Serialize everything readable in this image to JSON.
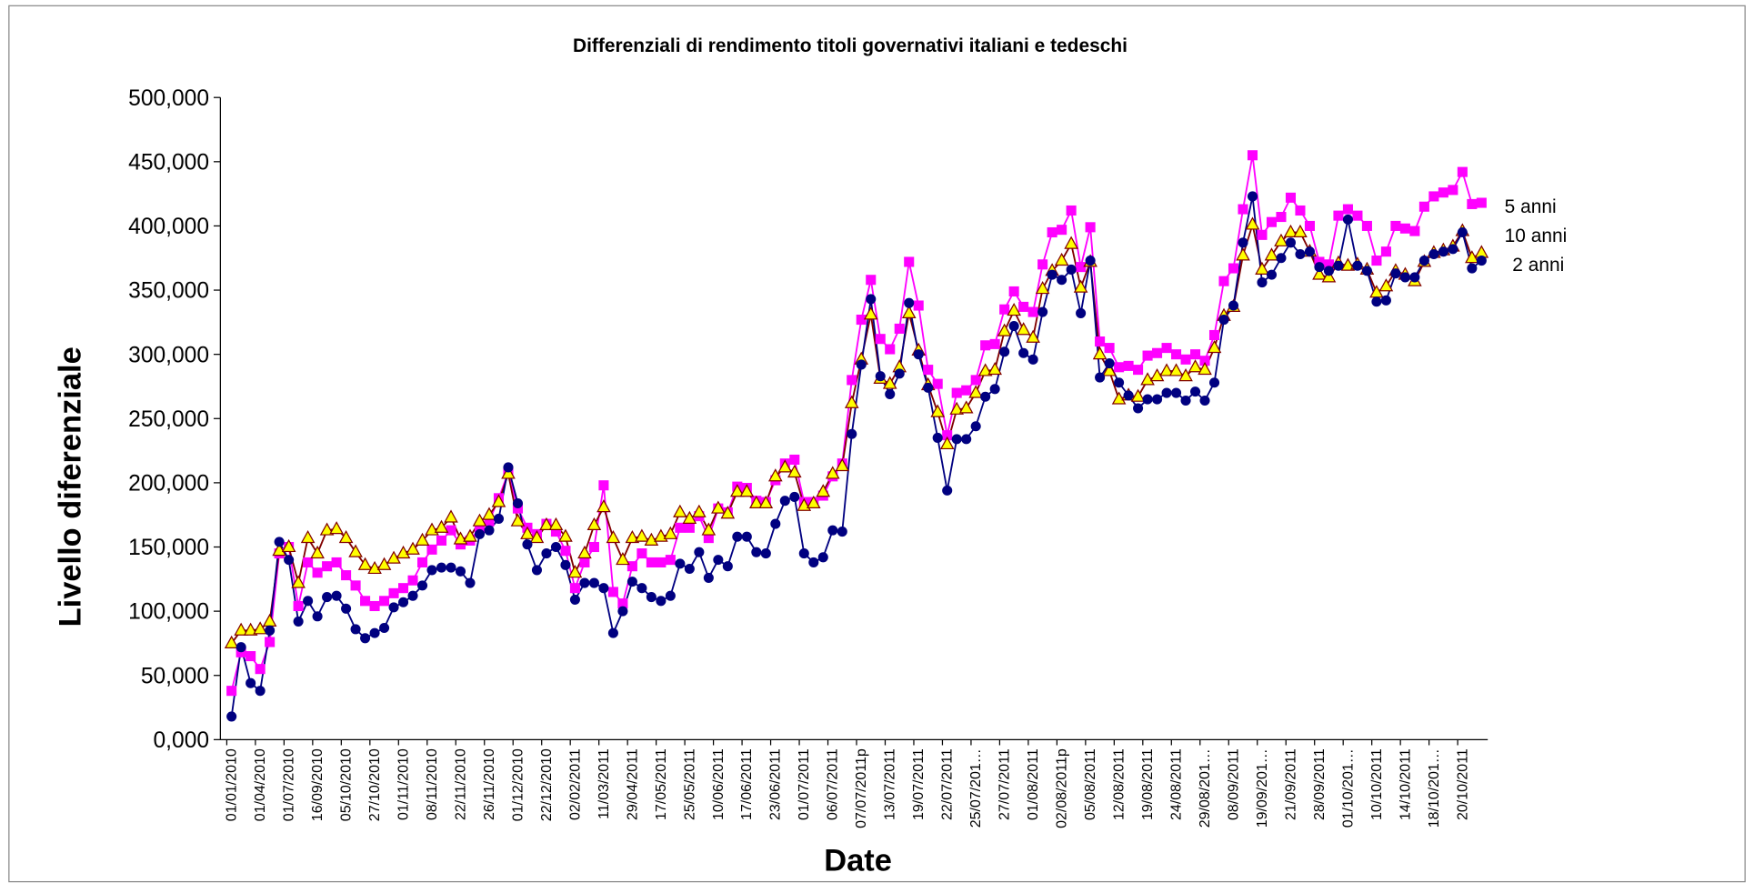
{
  "chart_data": {
    "type": "line",
    "title": "Differenziali di rendimento titoli governativi italiani e tedeschi",
    "y_label": "Livello diferenziale",
    "x_label": "Date",
    "categories": [
      "01/01/2010",
      null,
      null,
      "01/04/2010",
      null,
      null,
      "01/07/2010",
      null,
      null,
      "16/09/2010",
      null,
      null,
      "05/10/2010",
      null,
      null,
      "27/10/2010",
      null,
      null,
      "01/11/2010",
      null,
      null,
      "08/11/2010",
      null,
      null,
      "22/11/2010",
      null,
      null,
      "26/11/2010",
      null,
      null,
      "01/12/2010",
      null,
      null,
      "22/12/2010",
      null,
      null,
      "02/02/2011",
      null,
      null,
      "11/03/2011",
      null,
      null,
      "29/04/2011",
      null,
      null,
      "17/05/2011",
      null,
      null,
      "25/05/2011",
      null,
      null,
      "10/06/2011",
      null,
      null,
      "17/06/2011",
      null,
      null,
      "23/06/2011",
      null,
      null,
      "01/07/2011",
      null,
      null,
      "06/07/2011",
      null,
      null,
      "07/07/2011p",
      null,
      null,
      "13/07/2011",
      null,
      null,
      "19/07/2011",
      null,
      null,
      "22/07/2011",
      null,
      null,
      "25/07/201…",
      null,
      null,
      "27/07/2011",
      null,
      null,
      "01/08/2011",
      null,
      null,
      "02/08/2011p",
      null,
      null,
      "05/08/2011",
      null,
      null,
      "12/08/2011",
      null,
      null,
      "19/08/2011",
      null,
      null,
      "24/08/2011",
      null,
      null,
      "29/08/201…",
      null,
      null,
      "08/09/2011",
      null,
      null,
      "19/09/201…",
      null,
      null,
      "21/09/2011",
      null,
      null,
      "28/09/2011",
      null,
      null,
      "01/10/201…",
      null,
      null,
      "10/10/2011",
      null,
      null,
      "14/10/2011",
      null,
      null,
      "18/10/201…",
      null,
      null,
      "20/10/2011",
      null,
      null
    ],
    "series": [
      {
        "name": "5 anni",
        "color": "#ff00ff",
        "marker": "square",
        "values": [
          38,
          68,
          65,
          55,
          76,
          145,
          150,
          104,
          138,
          130,
          135,
          138,
          128,
          120,
          108,
          104,
          108,
          114,
          118,
          124,
          138,
          148,
          155,
          163,
          152,
          155,
          165,
          170,
          188,
          208,
          180,
          165,
          160,
          168,
          162,
          147,
          118,
          138,
          150,
          198,
          115,
          106,
          135,
          145,
          138,
          138,
          140,
          165,
          165,
          174,
          157,
          180,
          177,
          197,
          196,
          186,
          185,
          202,
          215,
          218,
          185,
          185,
          190,
          205,
          215,
          280,
          327,
          358,
          312,
          304,
          320,
          372,
          338,
          288,
          277,
          237,
          270,
          272,
          280,
          307,
          308,
          335,
          349,
          337,
          333,
          370,
          395,
          397,
          412,
          368,
          399,
          310,
          305,
          290,
          291,
          288,
          299,
          301,
          305,
          300,
          296,
          300,
          295,
          315,
          357,
          367,
          413,
          455,
          393,
          403,
          407,
          422,
          412,
          400,
          372,
          370,
          408,
          413,
          408,
          400,
          373,
          380,
          400,
          398,
          396,
          415,
          423,
          426,
          428,
          442,
          417,
          418
        ]
      },
      {
        "name": "10 anni",
        "color": "#ffff00",
        "line_color": "#800000",
        "marker": "triangle",
        "values": [
          75,
          85,
          85,
          86,
          92,
          147,
          150,
          122,
          157,
          145,
          163,
          164,
          157,
          146,
          136,
          133,
          136,
          141,
          145,
          148,
          155,
          163,
          165,
          173,
          156,
          158,
          170,
          175,
          185,
          207,
          170,
          160,
          157,
          167,
          167,
          158,
          130,
          145,
          167,
          181,
          157,
          140,
          157,
          158,
          155,
          158,
          160,
          177,
          172,
          177,
          163,
          180,
          176,
          193,
          193,
          184,
          184,
          205,
          212,
          208,
          182,
          184,
          193,
          207,
          213,
          262,
          296,
          331,
          281,
          277,
          290,
          332,
          303,
          276,
          255,
          230,
          257,
          258,
          270,
          287,
          288,
          318,
          334,
          319,
          313,
          351,
          365,
          373,
          386,
          352,
          372,
          300,
          287,
          265,
          268,
          267,
          280,
          283,
          287,
          287,
          283,
          290,
          288,
          305,
          330,
          337,
          377,
          401,
          366,
          377,
          388,
          395,
          395,
          380,
          362,
          360,
          371,
          369,
          370,
          366,
          348,
          353,
          365,
          362,
          357,
          372,
          379,
          381,
          384,
          396,
          375,
          379
        ]
      },
      {
        "name": "2 anni",
        "color": "#000080",
        "marker": "circle",
        "values": [
          18,
          72,
          44,
          38,
          85,
          154,
          140,
          92,
          108,
          96,
          111,
          112,
          102,
          86,
          79,
          83,
          87,
          103,
          107,
          112,
          120,
          132,
          134,
          134,
          131,
          122,
          160,
          163,
          172,
          212,
          184,
          152,
          132,
          145,
          150,
          136,
          109,
          122,
          122,
          118,
          83,
          100,
          123,
          118,
          111,
          108,
          112,
          137,
          133,
          146,
          126,
          140,
          135,
          158,
          158,
          146,
          145,
          168,
          186,
          189,
          145,
          138,
          142,
          163,
          162,
          238,
          292,
          343,
          283,
          269,
          285,
          340,
          300,
          274,
          235,
          194,
          234,
          234,
          244,
          267,
          273,
          302,
          322,
          301,
          296,
          333,
          362,
          358,
          366,
          332,
          373,
          282,
          293,
          278,
          268,
          258,
          265,
          265,
          270,
          270,
          264,
          271,
          264,
          278,
          327,
          338,
          387,
          423,
          356,
          362,
          375,
          387,
          378,
          380,
          368,
          365,
          369,
          405,
          369,
          365,
          341,
          342,
          363,
          360,
          360,
          373,
          378,
          380,
          382,
          395,
          367,
          373
        ]
      }
    ],
    "ylim": [
      0,
      500
    ],
    "yticks": [
      {
        "value": 0,
        "label": "0,000"
      },
      {
        "value": 50,
        "label": "50,000"
      },
      {
        "value": 100,
        "label": "100,000"
      },
      {
        "value": 150,
        "label": "150,000"
      },
      {
        "value": 200,
        "label": "200,000"
      },
      {
        "value": 250,
        "label": "250,000"
      },
      {
        "value": 300,
        "label": "300,000"
      },
      {
        "value": 350,
        "label": "350,000"
      },
      {
        "value": 400,
        "label": "400,000"
      },
      {
        "value": 450,
        "label": "450,000"
      },
      {
        "value": 500,
        "label": "500,000"
      }
    ],
    "grid": false,
    "legend": "right"
  }
}
